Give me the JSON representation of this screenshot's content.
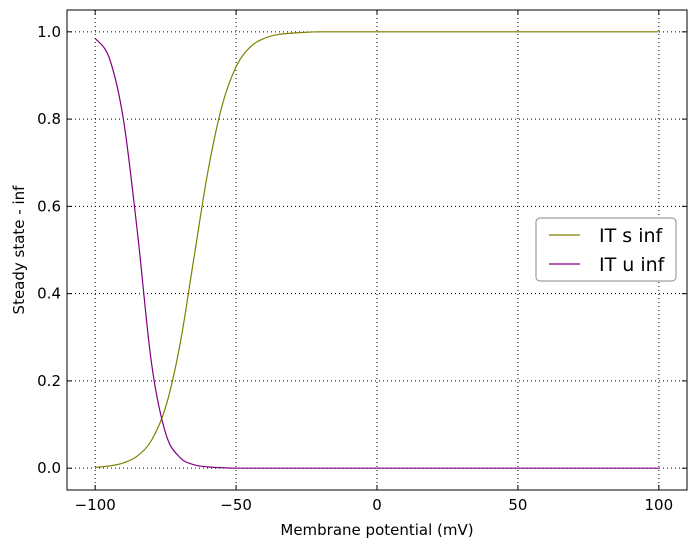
{
  "chart_data": {
    "type": "line",
    "title": "",
    "xlabel": "Membrane potential (mV)",
    "ylabel": "Steady state - inf",
    "xlim": [
      -110,
      110
    ],
    "ylim": [
      -0.05,
      1.05
    ],
    "xticks": [
      -100,
      -50,
      0,
      50,
      100
    ],
    "xtick_labels": [
      "−100",
      "−50",
      "0",
      "50",
      "100"
    ],
    "yticks": [
      0.0,
      0.2,
      0.4,
      0.6,
      0.8,
      1.0
    ],
    "ytick_labels": [
      "0.0",
      "0.2",
      "0.4",
      "0.6",
      "0.8",
      "1.0"
    ],
    "grid": true,
    "legend": "center-right",
    "x": [
      -100,
      -95,
      -90,
      -85,
      -80,
      -75,
      -70,
      -65,
      -60,
      -55,
      -50,
      -45,
      -40,
      -35,
      -30,
      -25,
      -20,
      -15,
      -10,
      -5,
      0,
      10,
      20,
      30,
      40,
      50,
      60,
      70,
      80,
      90,
      100
    ],
    "series": [
      {
        "name": "IT s inf",
        "color": "#808000",
        "values": [
          0.002,
          0.005,
          0.012,
          0.028,
          0.064,
          0.14,
          0.28,
          0.48,
          0.68,
          0.83,
          0.92,
          0.965,
          0.985,
          0.994,
          0.997,
          0.999,
          1.0,
          1.0,
          1.0,
          1.0,
          1.0,
          1.0,
          1.0,
          1.0,
          1.0,
          1.0,
          1.0,
          1.0,
          1.0,
          1.0,
          1.0
        ]
      },
      {
        "name": "IT u inf",
        "color": "#800080",
        "values": [
          0.985,
          0.94,
          0.8,
          0.54,
          0.24,
          0.08,
          0.025,
          0.008,
          0.003,
          0.001,
          0.0,
          0.0,
          0.0,
          0.0,
          0.0,
          0.0,
          0.0,
          0.0,
          0.0,
          0.0,
          0.0,
          0.0,
          0.0,
          0.0,
          0.0,
          0.0,
          0.0,
          0.0,
          0.0,
          0.0,
          0.0
        ]
      }
    ]
  }
}
